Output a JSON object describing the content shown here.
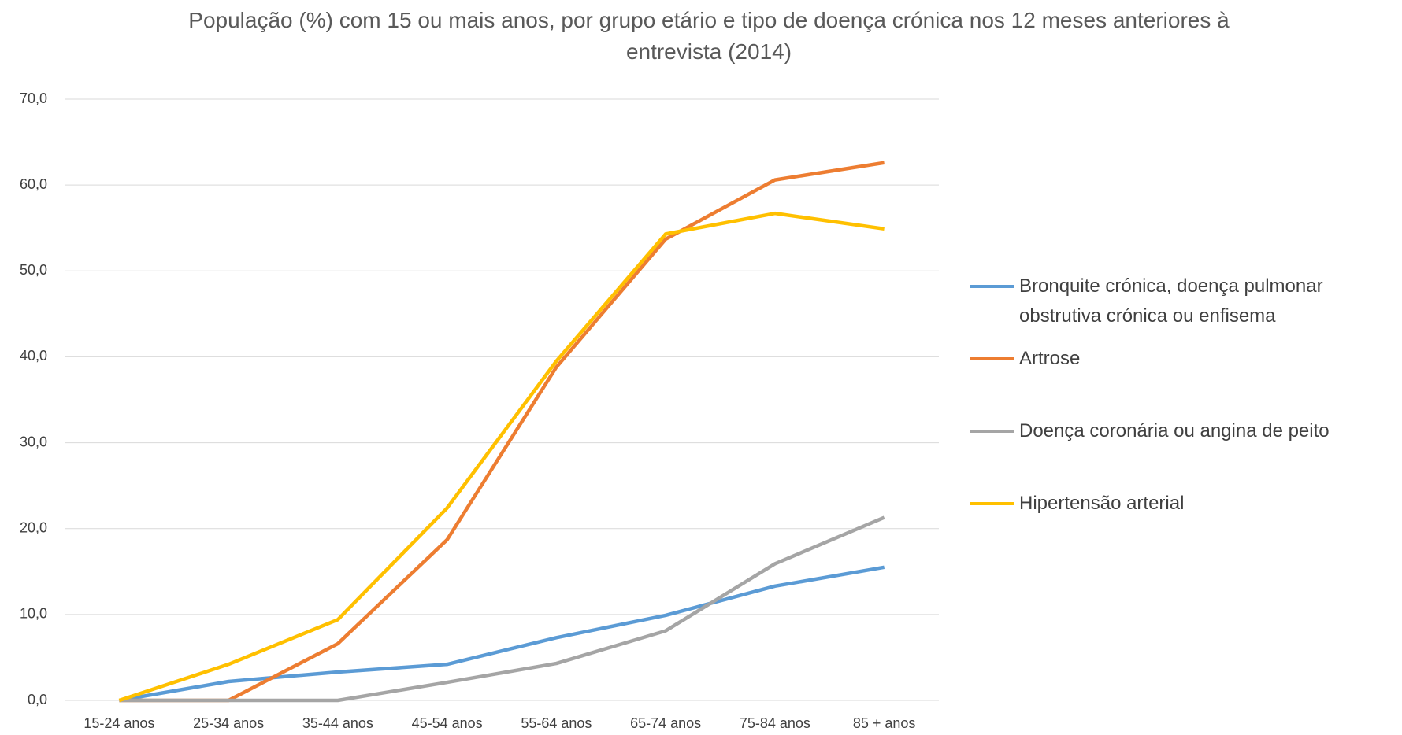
{
  "chart_data": {
    "type": "line",
    "title": "População (%)  com 15 ou mais anos, por grupo etário e tipo de doença crónica nos 12 meses anteriores à entrevista (2014)",
    "categories": [
      "15-24 anos",
      "25-34 anos",
      "35-44 anos",
      "45-54 anos",
      "55-64 anos",
      "65-74 anos",
      "75-84 anos",
      "85 + anos"
    ],
    "series": [
      {
        "name": "Bronquite crónica, doença pulmonar obstrutiva crónica ou enfisema",
        "color": "#5b9bd5",
        "values": [
          0,
          2.2,
          3.3,
          4.2,
          7.3,
          9.9,
          13.3,
          15.5
        ]
      },
      {
        "name": "Artrose",
        "color": "#ed7d31",
        "values": [
          0,
          0,
          6.6,
          18.7,
          38.8,
          53.7,
          60.6,
          62.6
        ]
      },
      {
        "name": "Doença coronária ou angina de peito",
        "color": "#a5a5a5",
        "values": [
          0,
          0,
          0,
          2.1,
          4.3,
          8.1,
          15.9,
          21.3
        ]
      },
      {
        "name": "Hipertensão arterial",
        "color": "#ffc000",
        "values": [
          0,
          4.2,
          9.4,
          22.4,
          39.5,
          54.3,
          56.7,
          54.9
        ]
      }
    ],
    "ylim": [
      0,
      70
    ],
    "yticks": [
      {
        "value": 0,
        "label": "0,0"
      },
      {
        "value": 10,
        "label": "10,0"
      },
      {
        "value": 20,
        "label": "20,0"
      },
      {
        "value": 30,
        "label": "30,0"
      },
      {
        "value": 40,
        "label": "40,0"
      },
      {
        "value": 50,
        "label": "50,0"
      },
      {
        "value": 60,
        "label": "60,0"
      },
      {
        "value": 70,
        "label": "70,0"
      }
    ],
    "grid": true,
    "legend": "right"
  }
}
